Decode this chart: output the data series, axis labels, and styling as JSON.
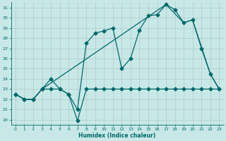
{
  "xlabel": "Humidex (Indice chaleur)",
  "background_color": "#c8e8e8",
  "grid_color": "#b0c8c8",
  "line_color": "#006868",
  "xlim": [
    -0.5,
    23.5
  ],
  "ylim": [
    19.5,
    31.5
  ],
  "yticks": [
    20,
    21,
    22,
    23,
    24,
    25,
    26,
    27,
    28,
    29,
    30,
    31
  ],
  "xticks": [
    0,
    1,
    2,
    3,
    4,
    5,
    6,
    7,
    8,
    9,
    10,
    11,
    12,
    13,
    14,
    15,
    16,
    17,
    18,
    19,
    20,
    21,
    22,
    23
  ],
  "series_main_x": [
    0,
    1,
    2,
    3,
    4,
    5,
    6,
    7,
    8,
    9,
    10,
    11,
    12,
    13,
    14,
    15,
    16,
    17,
    18,
    19,
    20,
    21,
    22,
    23
  ],
  "series_main_y": [
    22.5,
    22.0,
    22.0,
    23.0,
    24.0,
    23.0,
    22.5,
    21.0,
    27.5,
    28.5,
    28.7,
    29.0,
    25.0,
    26.0,
    28.8,
    30.2,
    30.3,
    31.3,
    30.8,
    29.5,
    29.8,
    27.0,
    24.5,
    23.0
  ],
  "series_flat_x": [
    0,
    1,
    2,
    3,
    4,
    5,
    6,
    7,
    8,
    9,
    10,
    11,
    12,
    13,
    14,
    15,
    16,
    17,
    18,
    19,
    20,
    21,
    22,
    23
  ],
  "series_flat_y": [
    22.5,
    22.0,
    22.0,
    23.0,
    23.0,
    23.0,
    22.5,
    19.9,
    23.0,
    23.0,
    23.0,
    23.0,
    23.0,
    23.0,
    23.0,
    23.0,
    23.0,
    23.0,
    23.0,
    23.0,
    23.0,
    23.0,
    23.0,
    23.0
  ],
  "series_trend_x": [
    0,
    1,
    2,
    3,
    17,
    19,
    20,
    22,
    23
  ],
  "series_trend_y": [
    22.5,
    22.0,
    22.0,
    23.0,
    31.3,
    29.5,
    29.8,
    24.5,
    23.0
  ]
}
